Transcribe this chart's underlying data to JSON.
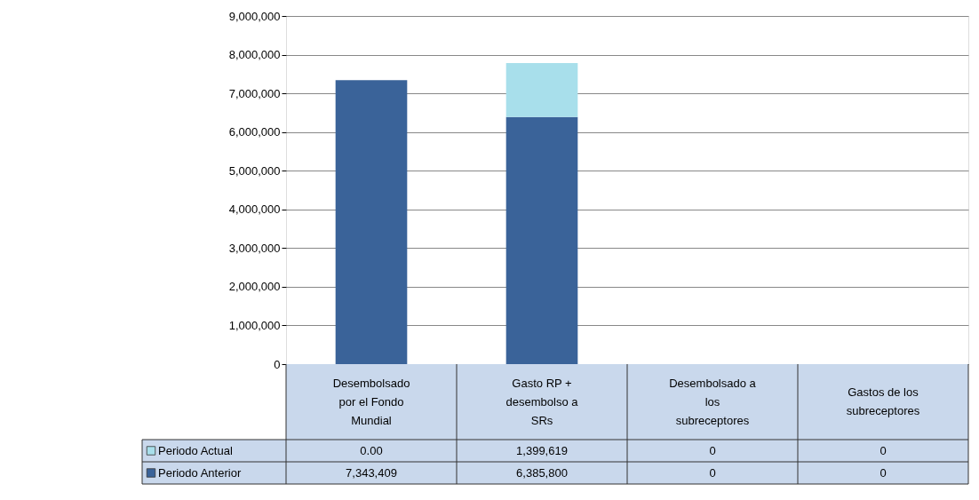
{
  "chart_data": {
    "type": "bar",
    "stacked": true,
    "categories": [
      "Desembolsado por el Fondo Mundial",
      "Gasto RP + desembolso a SRs",
      "Desembolsado a los subreceptores",
      "Gastos de los subreceptores"
    ],
    "series": [
      {
        "name": "Periodo Anterior",
        "color": "#3a6399",
        "values": [
          7343409,
          6385800,
          0,
          0
        ],
        "value_labels": [
          "7,343,409",
          "6,385,800",
          "0",
          "0"
        ]
      },
      {
        "name": "Periodo Actual",
        "color": "#a8dfeb",
        "values": [
          0.0,
          1399619,
          0,
          0
        ],
        "value_labels": [
          "0.00",
          "1,399,619",
          "0",
          "0"
        ]
      }
    ],
    "ylim": [
      0,
      9000000
    ],
    "yticks": [
      0,
      {
        "value": 1000000,
        "label": "1,000,000"
      },
      {
        "value": 2000000,
        "label": "2,000,000"
      },
      {
        "value": 3000000,
        "label": "3,000,000"
      },
      {
        "value": 4000000,
        "label": "4,000,000"
      },
      {
        "value": 5000000,
        "label": "5,000,000"
      },
      {
        "value": 6000000,
        "label": "6,000,000"
      },
      {
        "value": 7000000,
        "label": "7,000,000"
      },
      {
        "value": 8000000,
        "label": "8,000,000"
      },
      {
        "value": 9000000,
        "label": "9,000,000"
      }
    ],
    "grid": "y",
    "legend": "bottom"
  }
}
